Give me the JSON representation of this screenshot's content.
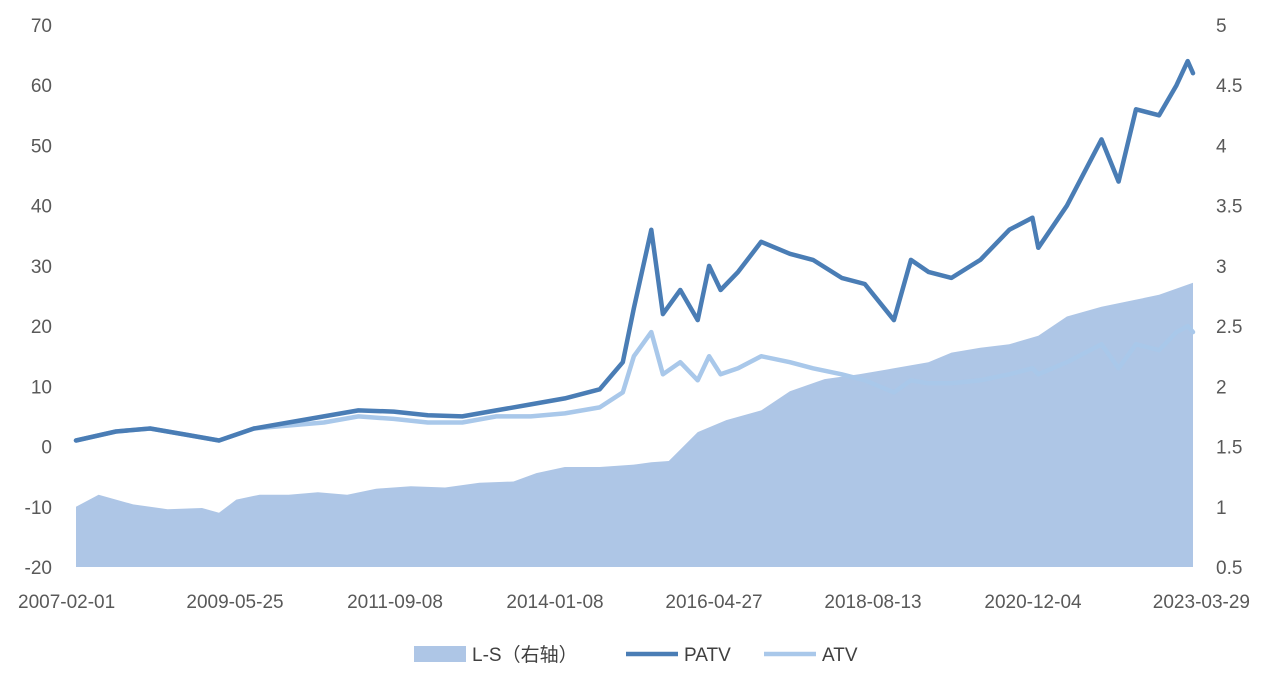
{
  "chart_data": {
    "type": "line",
    "title": "",
    "x_tick_labels": [
      "2007-02-01",
      "2009-05-25",
      "2011-09-08",
      "2014-01-08",
      "2016-04-27",
      "2018-08-13",
      "2020-12-04",
      "2023-03-29"
    ],
    "y_left": {
      "ticks": [
        "70",
        "60",
        "50",
        "40",
        "30",
        "20",
        "10",
        "0",
        "-10",
        "-20"
      ],
      "range": [
        -20,
        70
      ]
    },
    "y_right": {
      "ticks": [
        "5",
        "4.5",
        "4",
        "3.5",
        "3",
        "2.5",
        "2",
        "1.5",
        "1",
        "0.5"
      ],
      "range": [
        0.5,
        5
      ]
    },
    "grid": false,
    "legend_position": "bottom",
    "series": [
      {
        "name": "L-S（右轴）",
        "kind": "area",
        "axis": "right",
        "color": "#aec6e6",
        "points": [
          [
            "2007-02-01",
            1.0
          ],
          [
            "2007-06-01",
            1.1
          ],
          [
            "2007-12-01",
            1.02
          ],
          [
            "2008-06-01",
            0.98
          ],
          [
            "2008-12-01",
            0.99
          ],
          [
            "2009-03-01",
            0.95
          ],
          [
            "2009-06-01",
            1.06
          ],
          [
            "2009-10-01",
            1.1
          ],
          [
            "2010-03-01",
            1.1
          ],
          [
            "2010-08-01",
            1.12
          ],
          [
            "2011-01-01",
            1.1
          ],
          [
            "2011-06-01",
            1.15
          ],
          [
            "2011-12-01",
            1.17
          ],
          [
            "2012-06-01",
            1.16
          ],
          [
            "2012-12-01",
            1.2
          ],
          [
            "2013-06-01",
            1.21
          ],
          [
            "2013-10-01",
            1.28
          ],
          [
            "2014-03-01",
            1.33
          ],
          [
            "2014-09-01",
            1.33
          ],
          [
            "2015-03-01",
            1.35
          ],
          [
            "2015-06-01",
            1.37
          ],
          [
            "2015-09-01",
            1.38
          ],
          [
            "2016-02-01",
            1.62
          ],
          [
            "2016-07-01",
            1.72
          ],
          [
            "2017-01-01",
            1.8
          ],
          [
            "2017-06-01",
            1.96
          ],
          [
            "2017-12-01",
            2.06
          ],
          [
            "2018-06-01",
            2.1
          ],
          [
            "2018-12-01",
            2.15
          ],
          [
            "2019-06-01",
            2.2
          ],
          [
            "2019-10-01",
            2.28
          ],
          [
            "2020-03-01",
            2.32
          ],
          [
            "2020-08-01",
            2.35
          ],
          [
            "2021-01-01",
            2.42
          ],
          [
            "2021-06-01",
            2.58
          ],
          [
            "2021-12-01",
            2.66
          ],
          [
            "2022-06-01",
            2.72
          ],
          [
            "2022-10-01",
            2.76
          ],
          [
            "2023-03-29",
            2.86
          ]
        ]
      },
      {
        "name": "PATV",
        "kind": "line",
        "axis": "left",
        "color": "#4a7db5",
        "points": [
          [
            "2007-02-01",
            1
          ],
          [
            "2007-09-01",
            2.5
          ],
          [
            "2008-03-01",
            3
          ],
          [
            "2008-09-01",
            2
          ],
          [
            "2009-03-01",
            1
          ],
          [
            "2009-09-01",
            3
          ],
          [
            "2010-03-01",
            4
          ],
          [
            "2010-09-01",
            5
          ],
          [
            "2011-03-01",
            6
          ],
          [
            "2011-09-01",
            5.8
          ],
          [
            "2012-03-01",
            5.2
          ],
          [
            "2012-09-01",
            5
          ],
          [
            "2013-03-01",
            6
          ],
          [
            "2013-09-01",
            7
          ],
          [
            "2014-03-01",
            8
          ],
          [
            "2014-09-01",
            9.5
          ],
          [
            "2015-01-01",
            14
          ],
          [
            "2015-03-01",
            23
          ],
          [
            "2015-06-01",
            36
          ],
          [
            "2015-08-01",
            22
          ],
          [
            "2015-11-01",
            26
          ],
          [
            "2016-02-01",
            21
          ],
          [
            "2016-04-01",
            30
          ],
          [
            "2016-06-01",
            26
          ],
          [
            "2016-09-01",
            29
          ],
          [
            "2017-01-01",
            34
          ],
          [
            "2017-06-01",
            32
          ],
          [
            "2017-10-01",
            31
          ],
          [
            "2018-03-01",
            28
          ],
          [
            "2018-07-01",
            27
          ],
          [
            "2018-12-01",
            21
          ],
          [
            "2019-03-01",
            31
          ],
          [
            "2019-06-01",
            29
          ],
          [
            "2019-10-01",
            28
          ],
          [
            "2020-03-01",
            31
          ],
          [
            "2020-08-01",
            36
          ],
          [
            "2020-12-01",
            38
          ],
          [
            "2021-01-01",
            33
          ],
          [
            "2021-06-01",
            40
          ],
          [
            "2021-12-01",
            51
          ],
          [
            "2022-03-01",
            44
          ],
          [
            "2022-06-01",
            56
          ],
          [
            "2022-10-01",
            55
          ],
          [
            "2023-01-01",
            60
          ],
          [
            "2023-03-01",
            64
          ],
          [
            "2023-03-29",
            62
          ]
        ]
      },
      {
        "name": "ATV",
        "kind": "line",
        "axis": "left",
        "color": "#a9c8ea",
        "points": [
          [
            "2007-02-01",
            1
          ],
          [
            "2007-09-01",
            2.5
          ],
          [
            "2008-03-01",
            3
          ],
          [
            "2008-09-01",
            2
          ],
          [
            "2009-03-01",
            1
          ],
          [
            "2009-09-01",
            3
          ],
          [
            "2010-03-01",
            3.5
          ],
          [
            "2010-09-01",
            4
          ],
          [
            "2011-03-01",
            5
          ],
          [
            "2011-09-01",
            4.6
          ],
          [
            "2012-03-01",
            4
          ],
          [
            "2012-09-01",
            4
          ],
          [
            "2013-03-01",
            5
          ],
          [
            "2013-09-01",
            5
          ],
          [
            "2014-03-01",
            5.5
          ],
          [
            "2014-09-01",
            6.5
          ],
          [
            "2015-01-01",
            9
          ],
          [
            "2015-03-01",
            15
          ],
          [
            "2015-06-01",
            19
          ],
          [
            "2015-08-01",
            12
          ],
          [
            "2015-11-01",
            14
          ],
          [
            "2016-02-01",
            11
          ],
          [
            "2016-04-01",
            15
          ],
          [
            "2016-06-01",
            12
          ],
          [
            "2016-09-01",
            13
          ],
          [
            "2017-01-01",
            15
          ],
          [
            "2017-06-01",
            14
          ],
          [
            "2017-10-01",
            13
          ],
          [
            "2018-03-01",
            12
          ],
          [
            "2018-07-01",
            11
          ],
          [
            "2018-12-01",
            9
          ],
          [
            "2019-03-01",
            11
          ],
          [
            "2019-06-01",
            10.5
          ],
          [
            "2019-10-01",
            10.5
          ],
          [
            "2020-03-01",
            11
          ],
          [
            "2020-08-01",
            12
          ],
          [
            "2020-12-01",
            13
          ],
          [
            "2021-01-01",
            12
          ],
          [
            "2021-06-01",
            14
          ],
          [
            "2021-12-01",
            17
          ],
          [
            "2022-03-01",
            13
          ],
          [
            "2022-06-01",
            17
          ],
          [
            "2022-10-01",
            16
          ],
          [
            "2023-01-01",
            19
          ],
          [
            "2023-03-01",
            20
          ],
          [
            "2023-03-29",
            19
          ]
        ]
      }
    ]
  }
}
